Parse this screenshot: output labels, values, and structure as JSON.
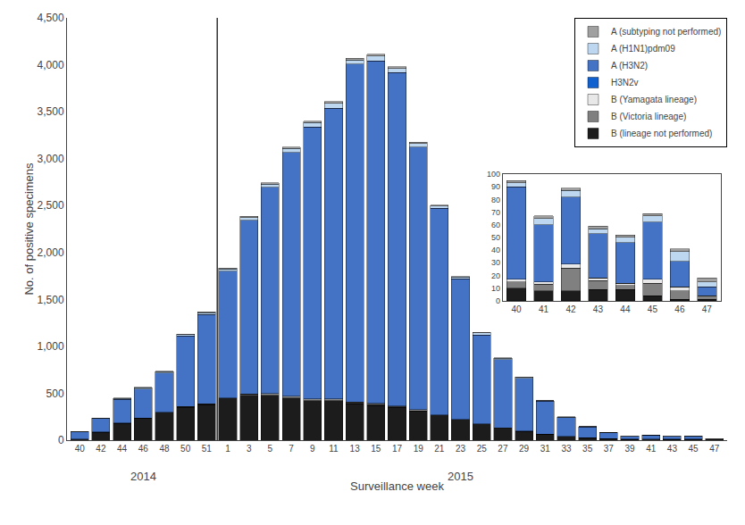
{
  "chart_data": [
    {
      "type": "bar",
      "stacked": true,
      "xlabel": "Surveillance week",
      "ylabel": "No. of positive specimens",
      "categories": [
        "40",
        "42",
        "44",
        "46",
        "48",
        "50",
        "51",
        "1",
        "3",
        "5",
        "7",
        "9",
        "11",
        "13",
        "15",
        "17",
        "19",
        "21",
        "23",
        "25",
        "27",
        "29",
        "31",
        "33",
        "35",
        "37",
        "39",
        "41",
        "43",
        "45",
        "47"
      ],
      "series": [
        {
          "name": "B (lineage not performed)",
          "color": "#1c1c1c",
          "values": [
            10,
            85,
            180,
            230,
            290,
            350,
            380,
            440,
            480,
            480,
            450,
            420,
            420,
            390,
            370,
            350,
            310,
            260,
            210,
            165,
            125,
            95,
            60,
            40,
            25,
            15,
            8,
            10,
            8,
            8,
            3
          ]
        },
        {
          "name": "B (Victoria lineage)",
          "color": "#808080",
          "values": [
            2,
            2,
            3,
            4,
            4,
            5,
            5,
            6,
            7,
            8,
            9,
            10,
            10,
            9,
            10,
            9,
            8,
            6,
            5,
            4,
            3,
            2,
            2,
            1,
            1,
            1,
            1,
            2,
            1,
            2,
            1
          ]
        },
        {
          "name": "B (Yamagata lineage)",
          "color": "#e8e8e8",
          "values": [
            1,
            2,
            2,
            3,
            3,
            4,
            4,
            5,
            6,
            7,
            8,
            8,
            9,
            8,
            8,
            7,
            6,
            5,
            4,
            3,
            3,
            2,
            2,
            1,
            1,
            1,
            1,
            1,
            1,
            1,
            1
          ]
        },
        {
          "name": "H3N2v",
          "color": "#1060d0",
          "values": [
            0,
            0,
            0,
            0,
            0,
            0,
            0,
            0,
            0,
            0,
            0,
            0,
            0,
            0,
            5,
            0,
            0,
            0,
            0,
            0,
            0,
            0,
            0,
            0,
            0,
            0,
            0,
            0,
            0,
            0,
            0
          ]
        },
        {
          "name": "A (H3N2)",
          "color": "#4472c4",
          "values": [
            75,
            140,
            250,
            310,
            420,
            750,
            950,
            1350,
            1850,
            2200,
            2600,
            2900,
            3100,
            3600,
            3650,
            3550,
            2800,
            2200,
            1500,
            950,
            730,
            560,
            350,
            200,
            115,
            65,
            30,
            40,
            30,
            30,
            8
          ]
        },
        {
          "name": "A (H1N1)pdm09",
          "color": "#bdd7f0",
          "values": [
            3,
            5,
            8,
            10,
            12,
            15,
            20,
            25,
            30,
            35,
            40,
            45,
            50,
            45,
            50,
            45,
            35,
            25,
            18,
            20,
            12,
            8,
            5,
            4,
            3,
            2,
            2,
            3,
            2,
            2,
            1
          ]
        },
        {
          "name": "A (subtyping not performed)",
          "color": "#a0a0a0",
          "values": [
            2,
            3,
            5,
            5,
            5,
            8,
            8,
            10,
            12,
            14,
            15,
            18,
            20,
            18,
            20,
            18,
            15,
            10,
            8,
            8,
            5,
            4,
            3,
            2,
            2,
            1,
            1,
            1,
            1,
            1,
            1
          ]
        }
      ],
      "ylim": [
        0,
        4500
      ],
      "yticks": [
        0,
        500,
        {
          "value": 1000,
          "label": "1,000"
        },
        {
          "value": 1500,
          "label": "1,500"
        },
        {
          "value": 2000,
          "label": "2,000"
        },
        {
          "value": 2500,
          "label": "2,500"
        },
        {
          "value": 3000,
          "label": "3,000"
        },
        {
          "value": 3500,
          "label": "3,500"
        },
        {
          "value": 4000,
          "label": "4,000"
        },
        {
          "value": 4500,
          "label": "4,500"
        }
      ],
      "annotations": [
        {
          "text": "2014",
          "x": "46"
        },
        {
          "text": "2015",
          "x": "23"
        }
      ],
      "legend": "upper right",
      "grid": false
    },
    {
      "type": "bar",
      "stacked": true,
      "categories": [
        "40",
        "41",
        "42",
        "43",
        "44",
        "45",
        "46",
        "47"
      ],
      "series": [
        {
          "color": "#1c1c1c",
          "values": [
            10,
            8,
            8,
            9,
            9,
            4,
            1,
            1
          ]
        },
        {
          "color": "#808080",
          "values": [
            5,
            5,
            18,
            7,
            3,
            10,
            7,
            2
          ]
        },
        {
          "color": "#e8e8e8",
          "values": [
            2,
            2,
            3,
            2,
            2,
            3,
            3,
            1
          ]
        },
        {
          "color": "#1060d0",
          "values": [
            0,
            0,
            0,
            0,
            0,
            0,
            0,
            0
          ]
        },
        {
          "color": "#4472c4",
          "values": [
            73,
            45,
            53,
            35,
            32,
            45,
            20,
            7
          ]
        },
        {
          "color": "#bdd7f0",
          "values": [
            3,
            5,
            5,
            4,
            4,
            5,
            8,
            4
          ]
        },
        {
          "color": "#a0a0a0",
          "values": [
            2,
            2,
            2,
            2,
            2,
            2,
            2,
            3
          ]
        }
      ],
      "ylim": [
        0,
        100
      ],
      "yticks": [
        0,
        10,
        20,
        30,
        40,
        50,
        60,
        70,
        80,
        90,
        100
      ],
      "grid": false
    }
  ]
}
